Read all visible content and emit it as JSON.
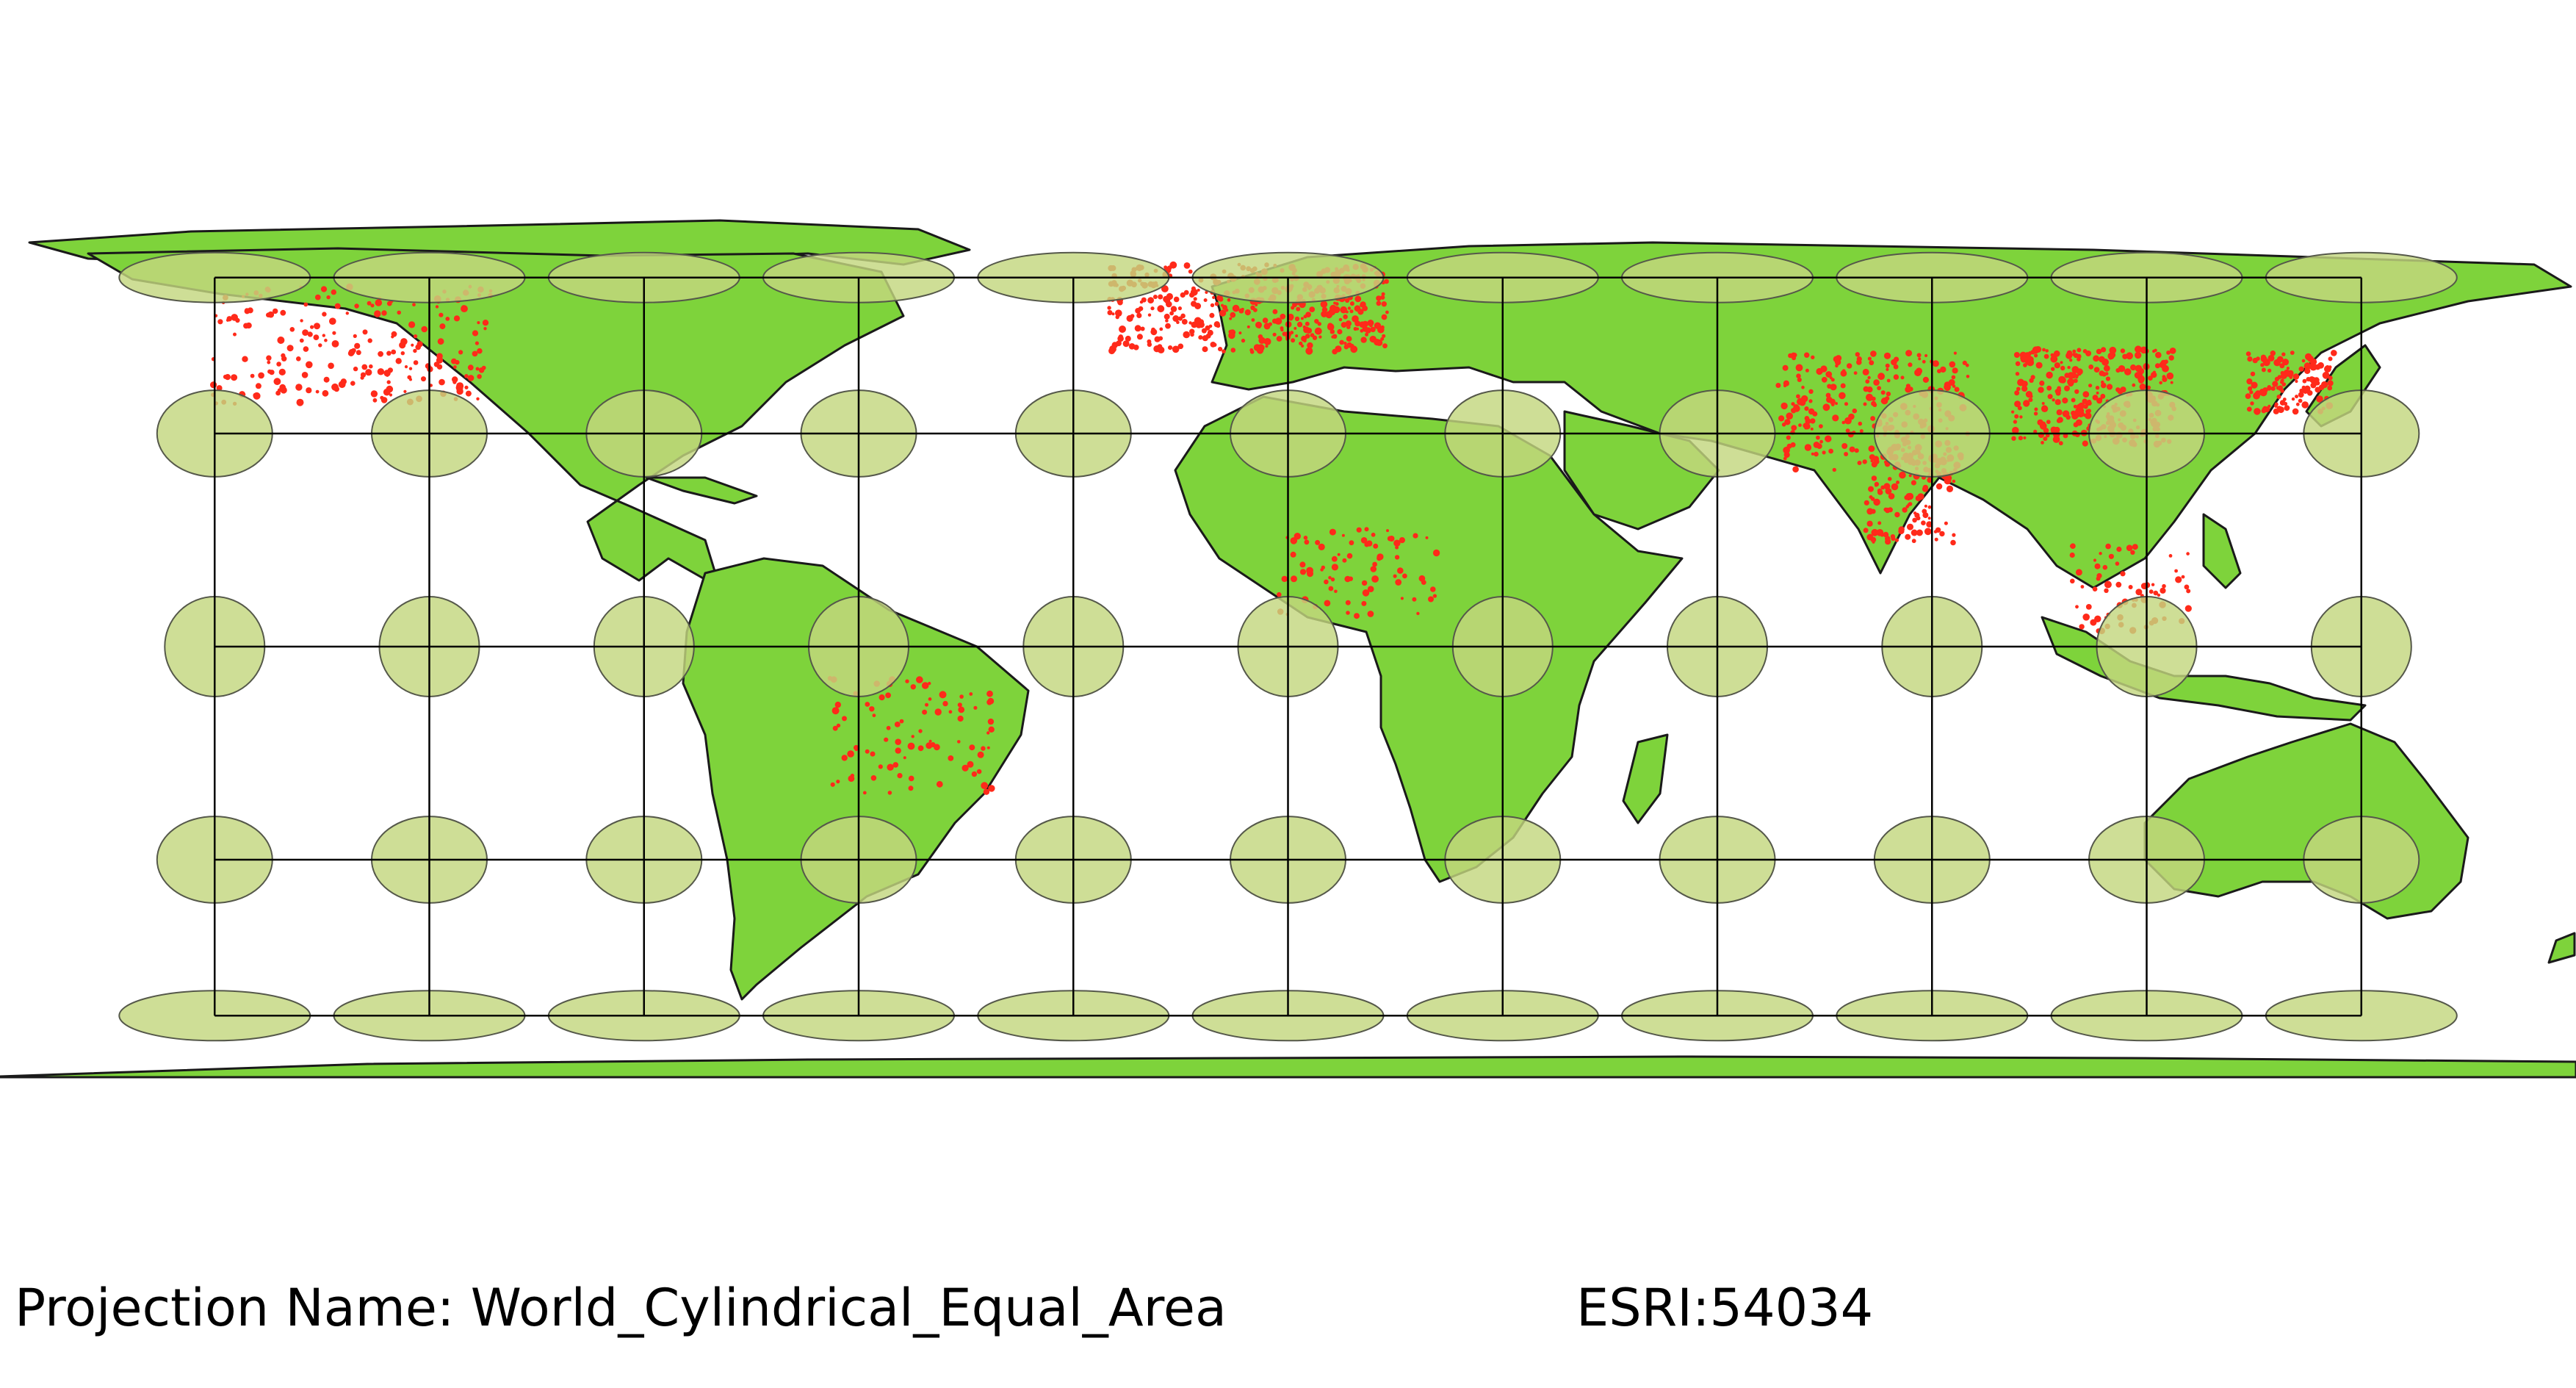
{
  "map": {
    "projection_label": "Projection Name:",
    "projection_name": "World_Cylindrical_Equal_Area",
    "crs_code": "ESRI:54034",
    "colors": {
      "land": "#7ed33b",
      "land_outline": "#1a1a1a",
      "population_points": "#ff2a1a",
      "tissot_fill": "#c3d77f",
      "tissot_outline": "#55584a",
      "graticule": "#000000",
      "background": "#ffffff"
    },
    "graticule": {
      "longitudes": [
        -150,
        -120,
        -90,
        -60,
        -30,
        0,
        30,
        60,
        90,
        120,
        150
      ],
      "latitudes": [
        -60,
        -30,
        0,
        30,
        60
      ]
    },
    "tissot": {
      "indicatrix_count": 55,
      "lon_step_deg": 30,
      "lat_step_deg": 30
    },
    "layers": [
      "country-boundaries",
      "populated-places",
      "tissot-indicatrix",
      "graticule"
    ]
  }
}
